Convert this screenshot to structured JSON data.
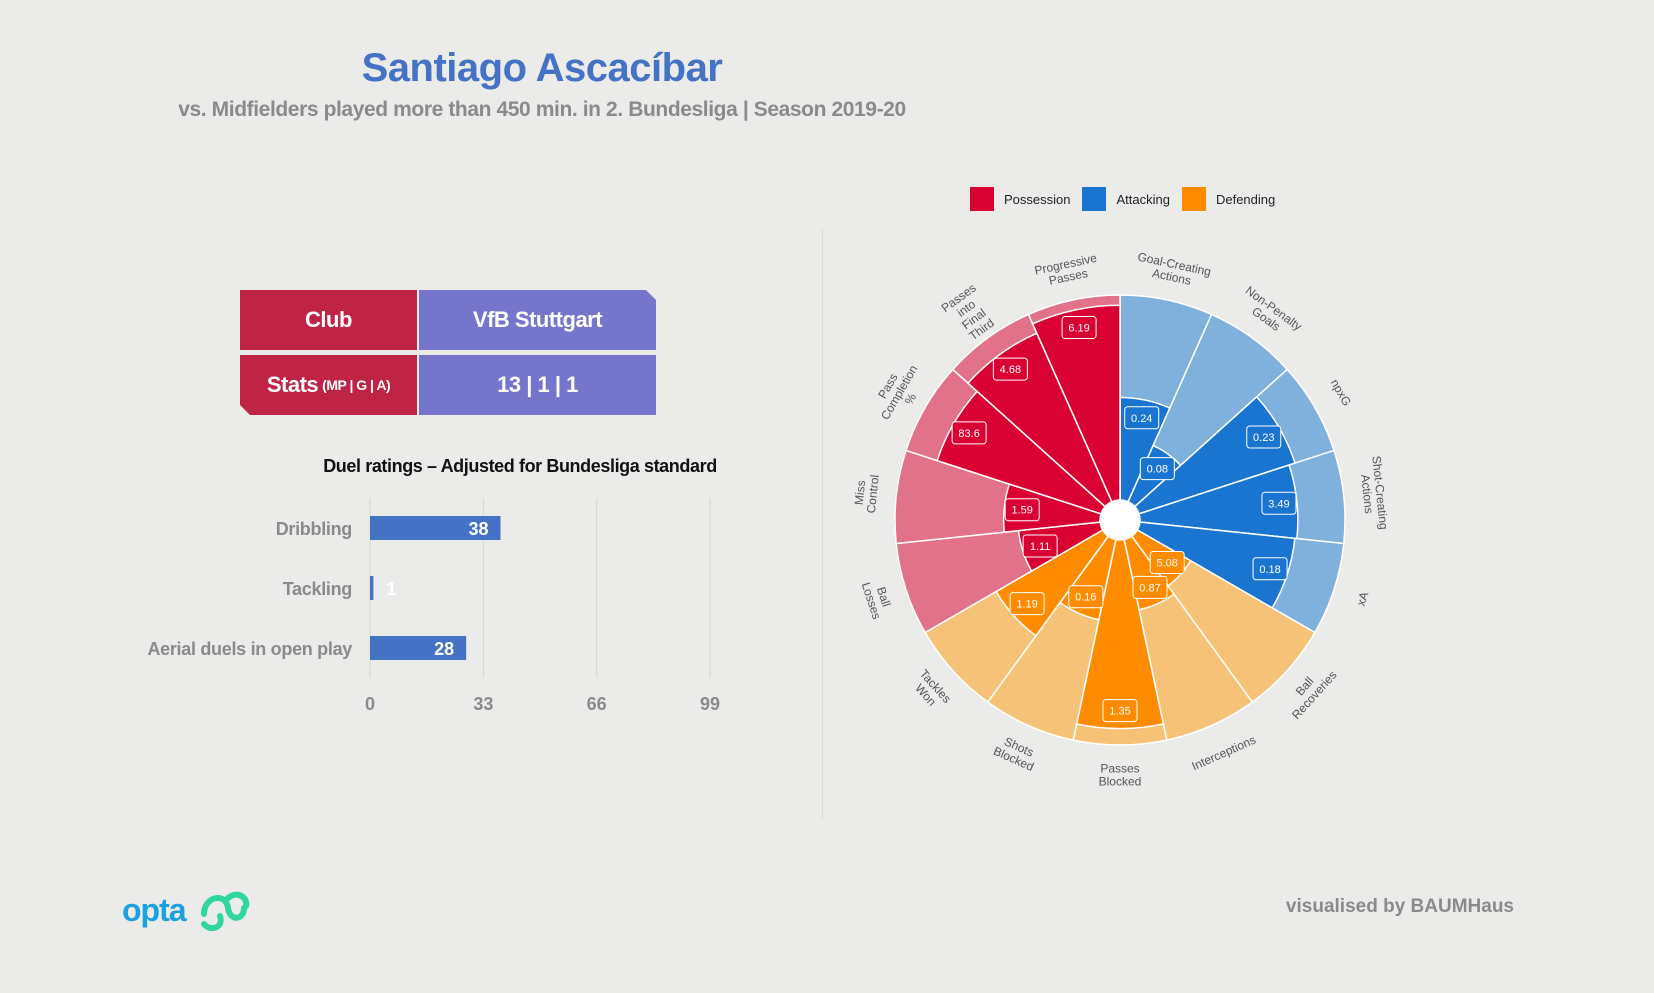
{
  "header": {
    "title": "Santiago Ascacíbar",
    "subtitle": "vs. Midfielders played more than 450 min. in 2. Bundesliga | Season 2019-20"
  },
  "info": {
    "club_label": "Club",
    "club_value": "VfB Stuttgart",
    "stats_label": "Stats",
    "stats_sub": "(MP | G | A)",
    "stats_value": "13 | 1 | 1"
  },
  "legend": [
    {
      "label": "Possession",
      "color": "#d90032"
    },
    {
      "label": "Attacking",
      "color": "#1a75d1"
    },
    {
      "label": "Defending",
      "color": "#ff8c00"
    }
  ],
  "footer": {
    "logo_text": "opta",
    "credit": "visualised by BAUMHaus"
  },
  "chart_data": [
    {
      "type": "bar",
      "orientation": "horizontal",
      "title": "Duel ratings – Adjusted for Bundesliga standard",
      "categories": [
        "Dribbling",
        "Tackling",
        "Aerial duels in open play"
      ],
      "values": [
        38,
        1,
        28
      ],
      "xlim": [
        0,
        99
      ],
      "xticks": [
        0,
        33,
        66,
        99
      ],
      "color": "#4472c4",
      "grid": true
    },
    {
      "type": "polar_bar",
      "title": "",
      "categories": [
        "Goal-Creating Actions",
        "Non-Penalty Goals",
        "npxG",
        "Shot-Creating Actions",
        "xA",
        "Ball Recoveries",
        "Interceptions",
        "Passes Blocked",
        "Shots Blocked",
        "Tackles Won",
        "Ball Losses",
        "Miss Control",
        "Pass Completion %",
        "Passes into Final Third",
        "Progressive Passes"
      ],
      "category_lines": [
        [
          "Goal-Creating",
          "Actions"
        ],
        [
          "Non-Penalty",
          "Goals"
        ],
        [
          "npxG"
        ],
        [
          "Shot-Creating",
          "Actions"
        ],
        [
          "xA"
        ],
        [
          "Ball",
          "Recoveries"
        ],
        [
          "Interceptions"
        ],
        [
          "Passes",
          "Blocked"
        ],
        [
          "Shots",
          "Blocked"
        ],
        [
          "Tackles",
          "Won"
        ],
        [
          "Ball",
          "Losses"
        ],
        [
          "Miss",
          "Control"
        ],
        [
          "Pass",
          "Completion",
          "%"
        ],
        [
          "Passes",
          "into",
          "Final",
          "Third"
        ],
        [
          "Progressive",
          "Passes"
        ]
      ],
      "groups": [
        "Attacking",
        "Attacking",
        "Attacking",
        "Attacking",
        "Attacking",
        "Defending",
        "Defending",
        "Defending",
        "Defending",
        "Defending",
        "Possession",
        "Possession",
        "Possession",
        "Possession",
        "Possession"
      ],
      "value_labels": [
        "0.24",
        "0.08",
        "0.23",
        "3.49",
        "0.18",
        "5.08",
        "0.87",
        "1.35",
        "0.16",
        "1.19",
        "1.11",
        "1.59",
        "83.6",
        "4.68",
        "6.19"
      ],
      "percentiles": [
        50,
        30,
        80,
        77,
        76,
        30,
        35,
        92,
        40,
        60,
        40,
        47,
        84,
        90,
        95
      ],
      "range": [
        0,
        100
      ],
      "colors": {
        "Possession": {
          "dark": "#d90032",
          "light": "#e27289"
        },
        "Attacking": {
          "dark": "#1a75d1",
          "light": "#80b1dd"
        },
        "Defending": {
          "dark": "#ff8c00",
          "light": "#f5c277"
        }
      }
    }
  ]
}
